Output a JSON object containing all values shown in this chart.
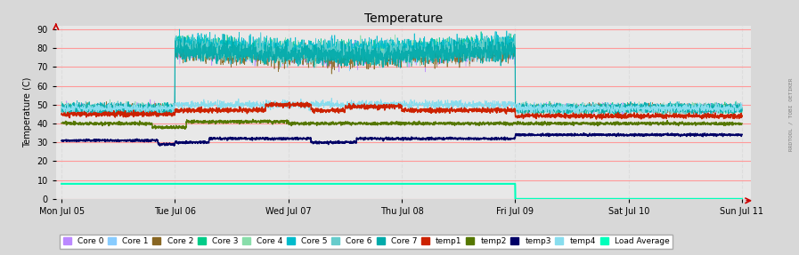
{
  "title": "Temperature",
  "ylabel": "Temperature (C)",
  "bg_color": "#d8d8d8",
  "plot_bg": "#e8e8e8",
  "grid_major_color": "#ff9999",
  "grid_minor_color": "#dddddd",
  "ylim": [
    0,
    92
  ],
  "yticks": [
    0,
    10,
    20,
    30,
    40,
    50,
    60,
    70,
    80,
    90
  ],
  "x_start": 0,
  "x_end": 6,
  "xtick_positions": [
    0,
    1,
    2,
    3,
    4,
    5,
    6
  ],
  "xtick_labels": [
    "Mon Jul 05",
    "Tue Jul 06",
    "Wed Jul 07",
    "Thu Jul 08",
    "Fri Jul 09",
    "Sat Jul 10",
    "Sun Jul 11"
  ],
  "watermark": "RRDTOOL / TOBI OETIKER",
  "legend_row1": [
    {
      "label": "Core 0",
      "color": "#bb88ff"
    },
    {
      "label": "Core 1",
      "color": "#88ccff"
    },
    {
      "label": "Core 2",
      "color": "#886622"
    },
    {
      "label": "Core 3",
      "color": "#00cc88"
    },
    {
      "label": "Core 4",
      "color": "#88ddaa"
    },
    {
      "label": "Core 5",
      "color": "#00bbcc"
    },
    {
      "label": "Core 6",
      "color": "#66cccc"
    },
    {
      "label": "Core 7",
      "color": "#00aaaa"
    },
    {
      "label": "temp1",
      "color": "#cc2200"
    },
    {
      "label": "temp2",
      "color": "#557700"
    },
    {
      "label": "temp3",
      "color": "#000066"
    },
    {
      "label": "temp4",
      "color": "#88ddee"
    }
  ],
  "legend_row2": [
    {
      "label": "Load Average",
      "color": "#00ffbb"
    }
  ],
  "busy_start": 1.0,
  "busy_end": 4.0,
  "load_drop": 4.0
}
